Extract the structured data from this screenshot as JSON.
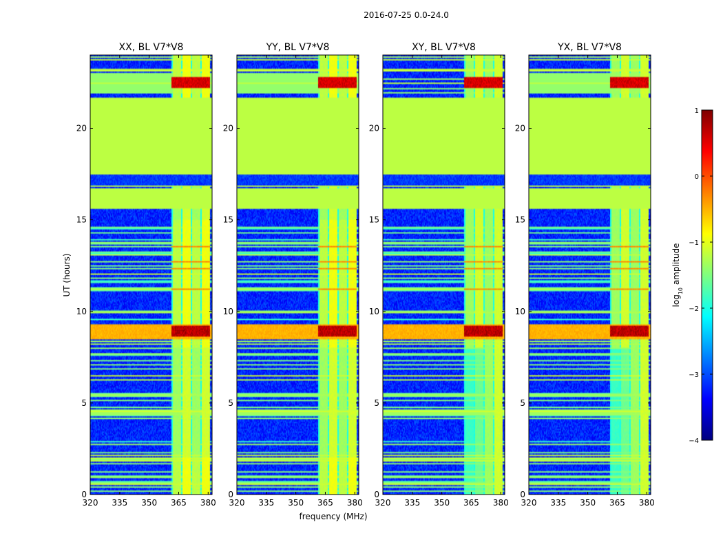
{
  "chart_data": {
    "type": "heatmap",
    "title": "2016-07-25 0.0-24.0",
    "xlabel": "frequency (MHz)",
    "ylabel": "UT (hours)",
    "xlim": [
      320,
      382
    ],
    "ylim": [
      0,
      24
    ],
    "xticks": [
      320,
      335,
      350,
      365,
      380
    ],
    "yticks": [
      0,
      5,
      10,
      15,
      20
    ],
    "panels": [
      {
        "title": "XX, BL V7*V8"
      },
      {
        "title": "YY, BL V7*V8"
      },
      {
        "title": "XY, BL V7*V8"
      },
      {
        "title": "YX, BL V7*V8"
      }
    ],
    "colorbar": {
      "label": "log10 amplitude",
      "label_main": "log",
      "label_sub": "10",
      "label_tail": " amplitude",
      "range": [
        -4,
        1
      ],
      "ticks": [
        1,
        0,
        -1,
        -2,
        -3,
        -4
      ],
      "tick_labels": [
        "1",
        "0",
        "−1",
        "−2",
        "−3",
        "−4"
      ],
      "colormap": "jet"
    },
    "flagged_block_hours": [
      17.5,
      21.7
    ],
    "flagged_value": -1.2,
    "rfi_band_mhz": [
      361.5,
      381
    ]
  },
  "colors": {
    "jet_stops": [
      "#00007f",
      "#0000ff",
      "#007fff",
      "#00ffff",
      "#7fff7f",
      "#ffff00",
      "#ff7f00",
      "#ff0000",
      "#7f0000"
    ]
  }
}
